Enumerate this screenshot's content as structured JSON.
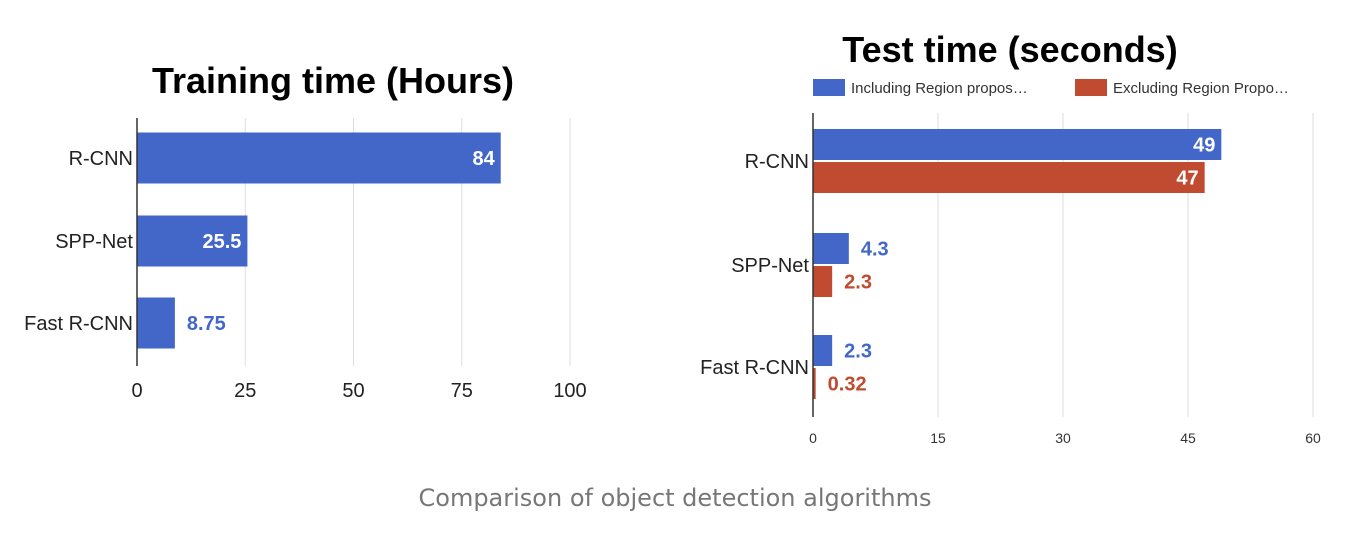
{
  "chart_data": [
    {
      "type": "bar",
      "orientation": "horizontal",
      "title": "Training time (Hours)",
      "categories": [
        "R-CNN",
        "SPP-Net",
        "Fast R-CNN"
      ],
      "series": [
        {
          "values": [
            84,
            25.5,
            8.75
          ],
          "labels": [
            "84",
            "25.5",
            "8.75"
          ]
        }
      ],
      "xlim": [
        0,
        100
      ],
      "xticks": [
        "0",
        "25",
        "50",
        "75",
        "100"
      ],
      "grid": true,
      "colors": [
        "#4267c8"
      ]
    },
    {
      "type": "bar",
      "orientation": "horizontal",
      "title": "Test time (seconds)",
      "categories": [
        "R-CNN",
        "SPP-Net",
        "Fast R-CNN"
      ],
      "series": [
        {
          "name": "Including Region propos…",
          "values": [
            49,
            4.3,
            2.3
          ],
          "labels": [
            "49",
            "4.3",
            "2.3"
          ]
        },
        {
          "name": "Excluding Region Propo…",
          "values": [
            47,
            2.3,
            0.32
          ],
          "labels": [
            "47",
            "2.3",
            "0.32"
          ]
        }
      ],
      "xlim": [
        0,
        60
      ],
      "xticks": [
        "0",
        "15",
        "30",
        "45",
        "60"
      ],
      "legend_position": "top",
      "grid": true,
      "colors": [
        "#4267c8",
        "#c04b30"
      ]
    }
  ],
  "caption": "Comparison of object detection algorithms"
}
